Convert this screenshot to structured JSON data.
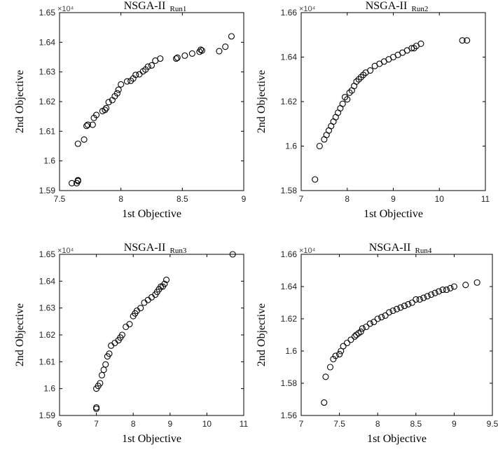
{
  "chart_data": [
    {
      "type": "scatter",
      "title": "NSGA-II",
      "title_sub": "Run1",
      "xlabel": "1st Objective",
      "ylabel": "2nd Objective",
      "y_multiplier": "×10⁴",
      "xlim": [
        7.5,
        9
      ],
      "ylim": [
        1.59,
        1.65
      ],
      "x_ticks": [
        "7.5",
        "8",
        "8.5",
        "9"
      ],
      "y_ticks": [
        "1.59",
        "1.6",
        "1.61",
        "1.62",
        "1.63",
        "1.64",
        "1.65"
      ],
      "series": [
        {
          "marker": "circle",
          "x": [
            7.6,
            7.65,
            7.64,
            7.65,
            7.65,
            7.7,
            7.72,
            7.73,
            7.77,
            7.78,
            7.8,
            7.85,
            7.87,
            7.88,
            7.9,
            7.93,
            7.95,
            7.97,
            7.98,
            8.0,
            8.05,
            8.08,
            8.1,
            8.12,
            8.15,
            8.18,
            8.2,
            8.22,
            8.25,
            8.28,
            8.32,
            8.45,
            8.46,
            8.52,
            8.58,
            8.64,
            8.65,
            8.66,
            8.8,
            8.85,
            8.9
          ],
          "y": [
            1.5925,
            1.5935,
            1.5925,
            1.5932,
            1.6058,
            1.6072,
            1.6118,
            1.6122,
            1.6122,
            1.6145,
            1.6155,
            1.6168,
            1.6172,
            1.6178,
            1.6198,
            1.6205,
            1.6218,
            1.6228,
            1.624,
            1.6258,
            1.6268,
            1.627,
            1.6278,
            1.629,
            1.6292,
            1.6302,
            1.6308,
            1.6318,
            1.6322,
            1.6338,
            1.6345,
            1.6345,
            1.6348,
            1.6355,
            1.6362,
            1.6368,
            1.6375,
            1.6372,
            1.637,
            1.6385,
            1.642
          ]
        }
      ]
    },
    {
      "type": "scatter",
      "title": "NSGA-II",
      "title_sub": "Run2",
      "xlabel": "1st Objective",
      "ylabel": "2nd Objective",
      "y_multiplier": "×10⁴",
      "xlim": [
        7,
        11
      ],
      "ylim": [
        1.58,
        1.66
      ],
      "x_ticks": [
        "7",
        "8",
        "9",
        "10",
        "11"
      ],
      "y_ticks": [
        "1.58",
        "1.6",
        "1.62",
        "1.64",
        "1.66"
      ],
      "series": [
        {
          "marker": "circle",
          "x": [
            7.3,
            7.4,
            7.5,
            7.55,
            7.6,
            7.65,
            7.7,
            7.75,
            7.8,
            7.85,
            7.9,
            7.95,
            8.0,
            8.05,
            8.1,
            8.15,
            8.2,
            8.25,
            8.3,
            8.35,
            8.4,
            8.5,
            8.6,
            8.7,
            8.8,
            8.9,
            9.0,
            9.1,
            9.2,
            9.3,
            9.4,
            9.45,
            9.5,
            9.6,
            10.5,
            10.6
          ],
          "y": [
            1.585,
            1.6,
            1.603,
            1.605,
            1.607,
            1.609,
            1.611,
            1.613,
            1.615,
            1.617,
            1.619,
            1.622,
            1.621,
            1.624,
            1.625,
            1.627,
            1.629,
            1.63,
            1.631,
            1.632,
            1.633,
            1.634,
            1.636,
            1.637,
            1.638,
            1.639,
            1.64,
            1.641,
            1.642,
            1.643,
            1.644,
            1.644,
            1.645,
            1.646,
            1.6475,
            1.6475
          ]
        }
      ]
    },
    {
      "type": "scatter",
      "title": "NSGA-II",
      "title_sub": "Run3",
      "xlabel": "1st Objective",
      "ylabel": "2nd Objective",
      "y_multiplier": "×10⁴",
      "xlim": [
        6,
        11
      ],
      "ylim": [
        1.59,
        1.65
      ],
      "x_ticks": [
        "6",
        "7",
        "8",
        "9",
        "10",
        "11"
      ],
      "y_ticks": [
        "1.59",
        "1.6",
        "1.61",
        "1.62",
        "1.63",
        "1.64",
        "1.65"
      ],
      "series": [
        {
          "marker": "circle",
          "x": [
            7.0,
            7.0,
            7.0,
            7.05,
            7.1,
            7.15,
            7.2,
            7.25,
            7.3,
            7.35,
            7.4,
            7.5,
            7.6,
            7.65,
            7.7,
            7.8,
            7.9,
            8.0,
            8.05,
            8.1,
            8.2,
            8.3,
            8.4,
            8.5,
            8.6,
            8.65,
            8.7,
            8.75,
            8.8,
            8.85,
            8.9,
            10.7
          ],
          "y": [
            1.5925,
            1.593,
            1.6,
            1.601,
            1.602,
            1.605,
            1.607,
            1.609,
            1.612,
            1.613,
            1.616,
            1.617,
            1.618,
            1.619,
            1.62,
            1.623,
            1.624,
            1.627,
            1.628,
            1.629,
            1.63,
            1.632,
            1.633,
            1.634,
            1.635,
            1.636,
            1.637,
            1.638,
            1.638,
            1.639,
            1.6405,
            1.65
          ]
        }
      ]
    },
    {
      "type": "scatter",
      "title": "NSGA-II",
      "title_sub": "Run4",
      "xlabel": "1st Objective",
      "ylabel": "2nd Objective",
      "y_multiplier": "×10⁴",
      "xlim": [
        7,
        9.5
      ],
      "ylim": [
        1.56,
        1.66
      ],
      "x_ticks": [
        "7",
        "7.5",
        "8",
        "8.5",
        "9",
        "9.5"
      ],
      "y_ticks": [
        "1.56",
        "1.58",
        "1.6",
        "1.62",
        "1.64",
        "1.66"
      ],
      "series": [
        {
          "marker": "circle",
          "x": [
            7.3,
            7.32,
            7.38,
            7.42,
            7.45,
            7.5,
            7.52,
            7.55,
            7.6,
            7.65,
            7.7,
            7.72,
            7.75,
            7.78,
            7.8,
            7.85,
            7.9,
            7.95,
            8.0,
            8.05,
            8.1,
            8.15,
            8.2,
            8.25,
            8.3,
            8.35,
            8.4,
            8.45,
            8.5,
            8.55,
            8.6,
            8.65,
            8.7,
            8.75,
            8.8,
            8.85,
            8.9,
            8.95,
            9.0,
            9.15,
            9.3
          ],
          "y": [
            1.568,
            1.584,
            1.59,
            1.595,
            1.597,
            1.598,
            1.6,
            1.603,
            1.605,
            1.607,
            1.609,
            1.61,
            1.611,
            1.612,
            1.614,
            1.615,
            1.617,
            1.618,
            1.62,
            1.621,
            1.622,
            1.624,
            1.625,
            1.626,
            1.627,
            1.628,
            1.629,
            1.63,
            1.632,
            1.632,
            1.633,
            1.634,
            1.635,
            1.636,
            1.637,
            1.638,
            1.638,
            1.639,
            1.64,
            1.641,
            1.6425
          ]
        }
      ]
    }
  ]
}
